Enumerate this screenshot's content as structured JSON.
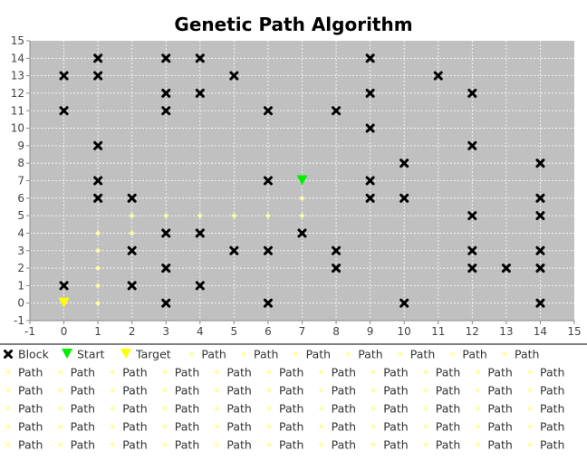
{
  "chart_data": {
    "type": "scatter",
    "title": "Genetic Path Algorithm",
    "xlabel": "",
    "ylabel": "",
    "xlim": [
      -1,
      15
    ],
    "ylim": [
      -1,
      15
    ],
    "x_ticks": [
      "-1",
      "0",
      "1",
      "2",
      "3",
      "4",
      "5",
      "6",
      "7",
      "8",
      "9",
      "10",
      "11",
      "12",
      "13",
      "14",
      "15"
    ],
    "y_ticks": [
      "-1",
      "0",
      "1",
      "2",
      "3",
      "4",
      "5",
      "6",
      "7",
      "8",
      "9",
      "10",
      "11",
      "12",
      "13",
      "14",
      "15"
    ],
    "grid": true,
    "plot_background": "#c0c0c0",
    "legend_position": "bottom",
    "series": [
      {
        "name": "Block",
        "marker": "x-icon",
        "color": "#000000",
        "points": [
          [
            0,
            13
          ],
          [
            0,
            11
          ],
          [
            0,
            1
          ],
          [
            1,
            14
          ],
          [
            1,
            13
          ],
          [
            1,
            9
          ],
          [
            1,
            7
          ],
          [
            1,
            6
          ],
          [
            2,
            6
          ],
          [
            2,
            3
          ],
          [
            2,
            1
          ],
          [
            3,
            14
          ],
          [
            3,
            12
          ],
          [
            3,
            11
          ],
          [
            3,
            4
          ],
          [
            3,
            2
          ],
          [
            3,
            0
          ],
          [
            4,
            14
          ],
          [
            4,
            12
          ],
          [
            4,
            4
          ],
          [
            4,
            1
          ],
          [
            5,
            13
          ],
          [
            5,
            3
          ],
          [
            6,
            11
          ],
          [
            6,
            7
          ],
          [
            6,
            3
          ],
          [
            6,
            0
          ],
          [
            7,
            4
          ],
          [
            8,
            11
          ],
          [
            8,
            3
          ],
          [
            8,
            2
          ],
          [
            9,
            14
          ],
          [
            9,
            12
          ],
          [
            9,
            10
          ],
          [
            9,
            7
          ],
          [
            9,
            6
          ],
          [
            10,
            8
          ],
          [
            10,
            6
          ],
          [
            10,
            0
          ],
          [
            11,
            13
          ],
          [
            12,
            12
          ],
          [
            12,
            9
          ],
          [
            12,
            5
          ],
          [
            12,
            3
          ],
          [
            12,
            2
          ],
          [
            13,
            2
          ],
          [
            14,
            8
          ],
          [
            14,
            6
          ],
          [
            14,
            5
          ],
          [
            14,
            3
          ],
          [
            14,
            2
          ],
          [
            14,
            0
          ]
        ]
      },
      {
        "name": "Start",
        "marker": "triangle-down-icon",
        "color": "#00ee00",
        "points": [
          [
            7,
            7
          ]
        ]
      },
      {
        "name": "Target",
        "marker": "triangle-down-icon",
        "color": "#ffff00",
        "points": [
          [
            0,
            0
          ]
        ]
      },
      {
        "name": "Path",
        "marker": "diamond-icon",
        "color": "#ffffa0",
        "points": [
          [
            1,
            0
          ],
          [
            1,
            1
          ],
          [
            1,
            2
          ],
          [
            1,
            3
          ],
          [
            1,
            4
          ],
          [
            2,
            4
          ],
          [
            2,
            5
          ],
          [
            3,
            5
          ],
          [
            4,
            5
          ],
          [
            5,
            5
          ],
          [
            6,
            5
          ],
          [
            7,
            5
          ],
          [
            7,
            6
          ]
        ]
      }
    ],
    "legend": {
      "entries": [
        {
          "label": "Block",
          "marker": "x-icon",
          "color": "#000000"
        },
        {
          "label": "Start",
          "marker": "triangle-down-icon",
          "color": "#00ee00"
        },
        {
          "label": "Target",
          "marker": "triangle-down-icon",
          "color": "#ffff00"
        },
        {
          "label": "Path",
          "repeat": 78,
          "marker": "diamond-icon",
          "color": "#ffffa0"
        }
      ]
    }
  }
}
